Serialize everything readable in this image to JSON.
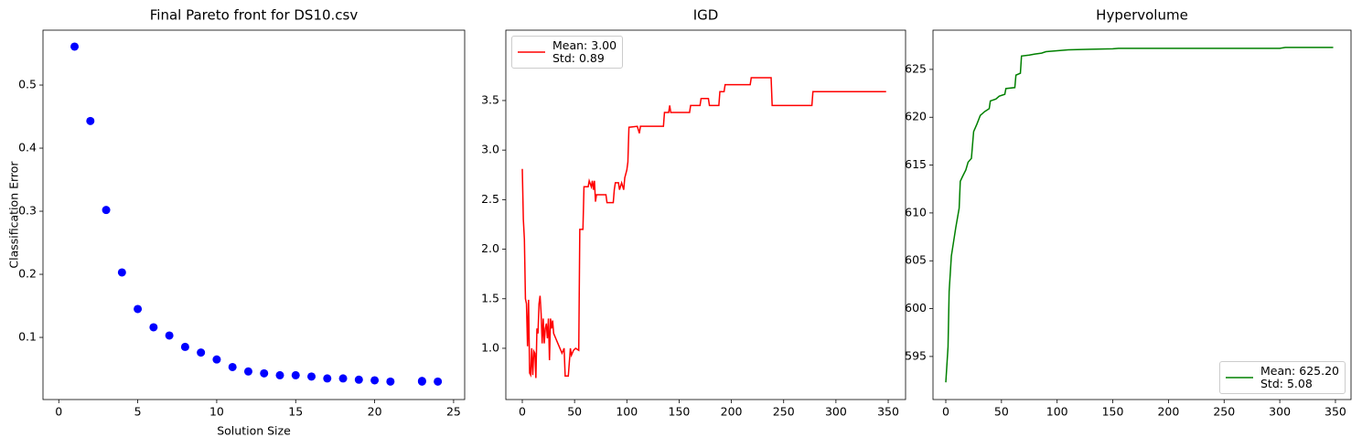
{
  "chart_data": [
    {
      "type": "scatter",
      "title": "Final Pareto front for DS10.csv",
      "x_label": "Solution Size",
      "y_label": "Classification Error",
      "color": "#0000ff",
      "x": [
        1,
        2,
        3,
        4,
        5,
        6,
        7,
        8,
        9,
        10,
        11,
        12,
        13,
        14,
        15,
        16,
        17,
        18,
        19,
        20,
        21,
        23,
        23,
        24
      ],
      "values": [
        0.561,
        0.443,
        0.302,
        0.203,
        0.145,
        0.116,
        0.103,
        0.085,
        0.076,
        0.065,
        0.053,
        0.046,
        0.043,
        0.04,
        0.04,
        0.038,
        0.035,
        0.035,
        0.033,
        0.032,
        0.03,
        0.03,
        0.031,
        0.03
      ],
      "xlim": [
        -1,
        25.7
      ],
      "xticks": [
        0,
        5,
        10,
        15,
        20,
        25
      ],
      "ylim": [
        0.0015,
        0.587
      ],
      "yticks": [
        0.1,
        0.2,
        0.3,
        0.4,
        0.5
      ]
    },
    {
      "type": "line",
      "title": "IGD",
      "legend": "upper left",
      "x": [
        0,
        1,
        2,
        3,
        4,
        5,
        6,
        7,
        8,
        9,
        10,
        11,
        12,
        13,
        14,
        15,
        16,
        17,
        18,
        19,
        20,
        21,
        22,
        23,
        24,
        25,
        26,
        27,
        28,
        29,
        30,
        32,
        34,
        36,
        38,
        40,
        41,
        44,
        46,
        47,
        49,
        51,
        54,
        55,
        58,
        59,
        63,
        64,
        66,
        67,
        68,
        69,
        70,
        71,
        80,
        81,
        87,
        88,
        89,
        92,
        93,
        95,
        97,
        98,
        100,
        101,
        102,
        110,
        112,
        113,
        120,
        135,
        136,
        140,
        141,
        142,
        160,
        161,
        170,
        171,
        178,
        179,
        188,
        189,
        193,
        194,
        218,
        219,
        238,
        239,
        277,
        278,
        348
      ],
      "series": [
        {
          "name": "Mean: 3.00\nStd: 0.89",
          "color": "#ff0000",
          "values": [
            2.81,
            2.3,
            2.1,
            1.5,
            1.45,
            1.02,
            1.49,
            0.75,
            0.73,
            1.0,
            0.73,
            0.97,
            0.95,
            0.7,
            1.2,
            1.15,
            1.45,
            1.53,
            1.35,
            1.05,
            1.3,
            1.05,
            1.2,
            1.25,
            1.1,
            1.3,
            0.88,
            1.3,
            1.2,
            1.28,
            1.15,
            1.1,
            1.05,
            1.0,
            0.95,
            1.0,
            0.72,
            0.72,
            1.0,
            0.93,
            0.98,
            1.0,
            0.98,
            2.2,
            2.2,
            2.63,
            2.63,
            2.69,
            2.63,
            2.69,
            2.6,
            2.69,
            2.48,
            2.55,
            2.55,
            2.47,
            2.47,
            2.6,
            2.67,
            2.67,
            2.6,
            2.67,
            2.6,
            2.72,
            2.8,
            2.88,
            3.23,
            3.24,
            3.17,
            3.24,
            3.24,
            3.24,
            3.38,
            3.38,
            3.45,
            3.38,
            3.38,
            3.45,
            3.45,
            3.52,
            3.52,
            3.45,
            3.45,
            3.59,
            3.59,
            3.66,
            3.66,
            3.73,
            3.73,
            3.45,
            3.45,
            3.59,
            3.59
          ]
        }
      ],
      "xlim": [
        -15.75,
        366.6
      ],
      "xticks": [
        0,
        50,
        100,
        150,
        200,
        250,
        300,
        350
      ],
      "ylim": [
        0.483,
        4.21
      ],
      "yticks": [
        {
          "value": 1.0,
          "label": "1.0"
        },
        1.5,
        {
          "value": 2.0,
          "label": "2.0"
        },
        2.5,
        {
          "value": 3.0,
          "label": "3.0"
        },
        3.5
      ]
    },
    {
      "type": "line",
      "title": "Hypervolume",
      "legend": "lower right",
      "x": [
        0,
        2,
        3,
        5,
        7,
        9,
        12,
        13,
        15,
        18,
        20,
        23,
        25,
        28,
        31,
        35,
        39,
        40,
        45,
        48,
        53,
        54,
        62,
        63,
        67,
        68,
        75,
        80,
        86,
        90,
        100,
        110,
        130,
        150,
        155,
        300,
        305,
        348
      ],
      "series": [
        {
          "name": "Mean: 625.20\nStd: 5.08",
          "color": "#008000",
          "values": [
            592.3,
            596,
            601.8,
            605.5,
            607,
            608.5,
            610.5,
            613.3,
            613.8,
            614.5,
            615.3,
            615.7,
            618.5,
            619.3,
            620.2,
            620.6,
            620.9,
            621.7,
            621.9,
            622.2,
            622.4,
            623.0,
            623.1,
            624.4,
            624.6,
            626.4,
            626.5,
            626.6,
            626.7,
            626.85,
            626.95,
            627.05,
            627.1,
            627.15,
            627.2,
            627.2,
            627.3,
            627.3
          ]
        }
      ],
      "xlim": [
        -11.5,
        364
      ],
      "xticks": [
        0,
        50,
        100,
        150,
        200,
        250,
        300,
        350
      ],
      "ylim": [
        590.5,
        629.1
      ],
      "yticks": [
        595,
        600,
        605,
        610,
        615,
        620,
        625
      ]
    }
  ]
}
